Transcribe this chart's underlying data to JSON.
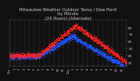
{
  "title": "Milwaukee Weather Outdoor Temp / Dew Point\nby Minute\n(24 Hours) (Alternate)",
  "title_fontsize": 3.8,
  "background_color": "#111111",
  "plot_bg_color": "#111111",
  "grid_color": "#555555",
  "temp_color": "#ff2222",
  "dew_color": "#2255ff",
  "ylim": [
    25,
    90
  ],
  "yticks": [
    30,
    40,
    50,
    60,
    70,
    80
  ],
  "ylabel_fontsize": 3.2,
  "xlabel_fontsize": 2.8,
  "title_color": "#cccccc",
  "tick_color": "#cccccc",
  "marker_size": 0.5,
  "x_labels": [
    "12a",
    "1",
    "2",
    "3",
    "4",
    "5",
    "6",
    "7",
    "8",
    "9",
    "10",
    "11",
    "12p",
    "1",
    "2",
    "3",
    "4",
    "5",
    "6",
    "7",
    "8",
    "9",
    "10",
    "11"
  ]
}
